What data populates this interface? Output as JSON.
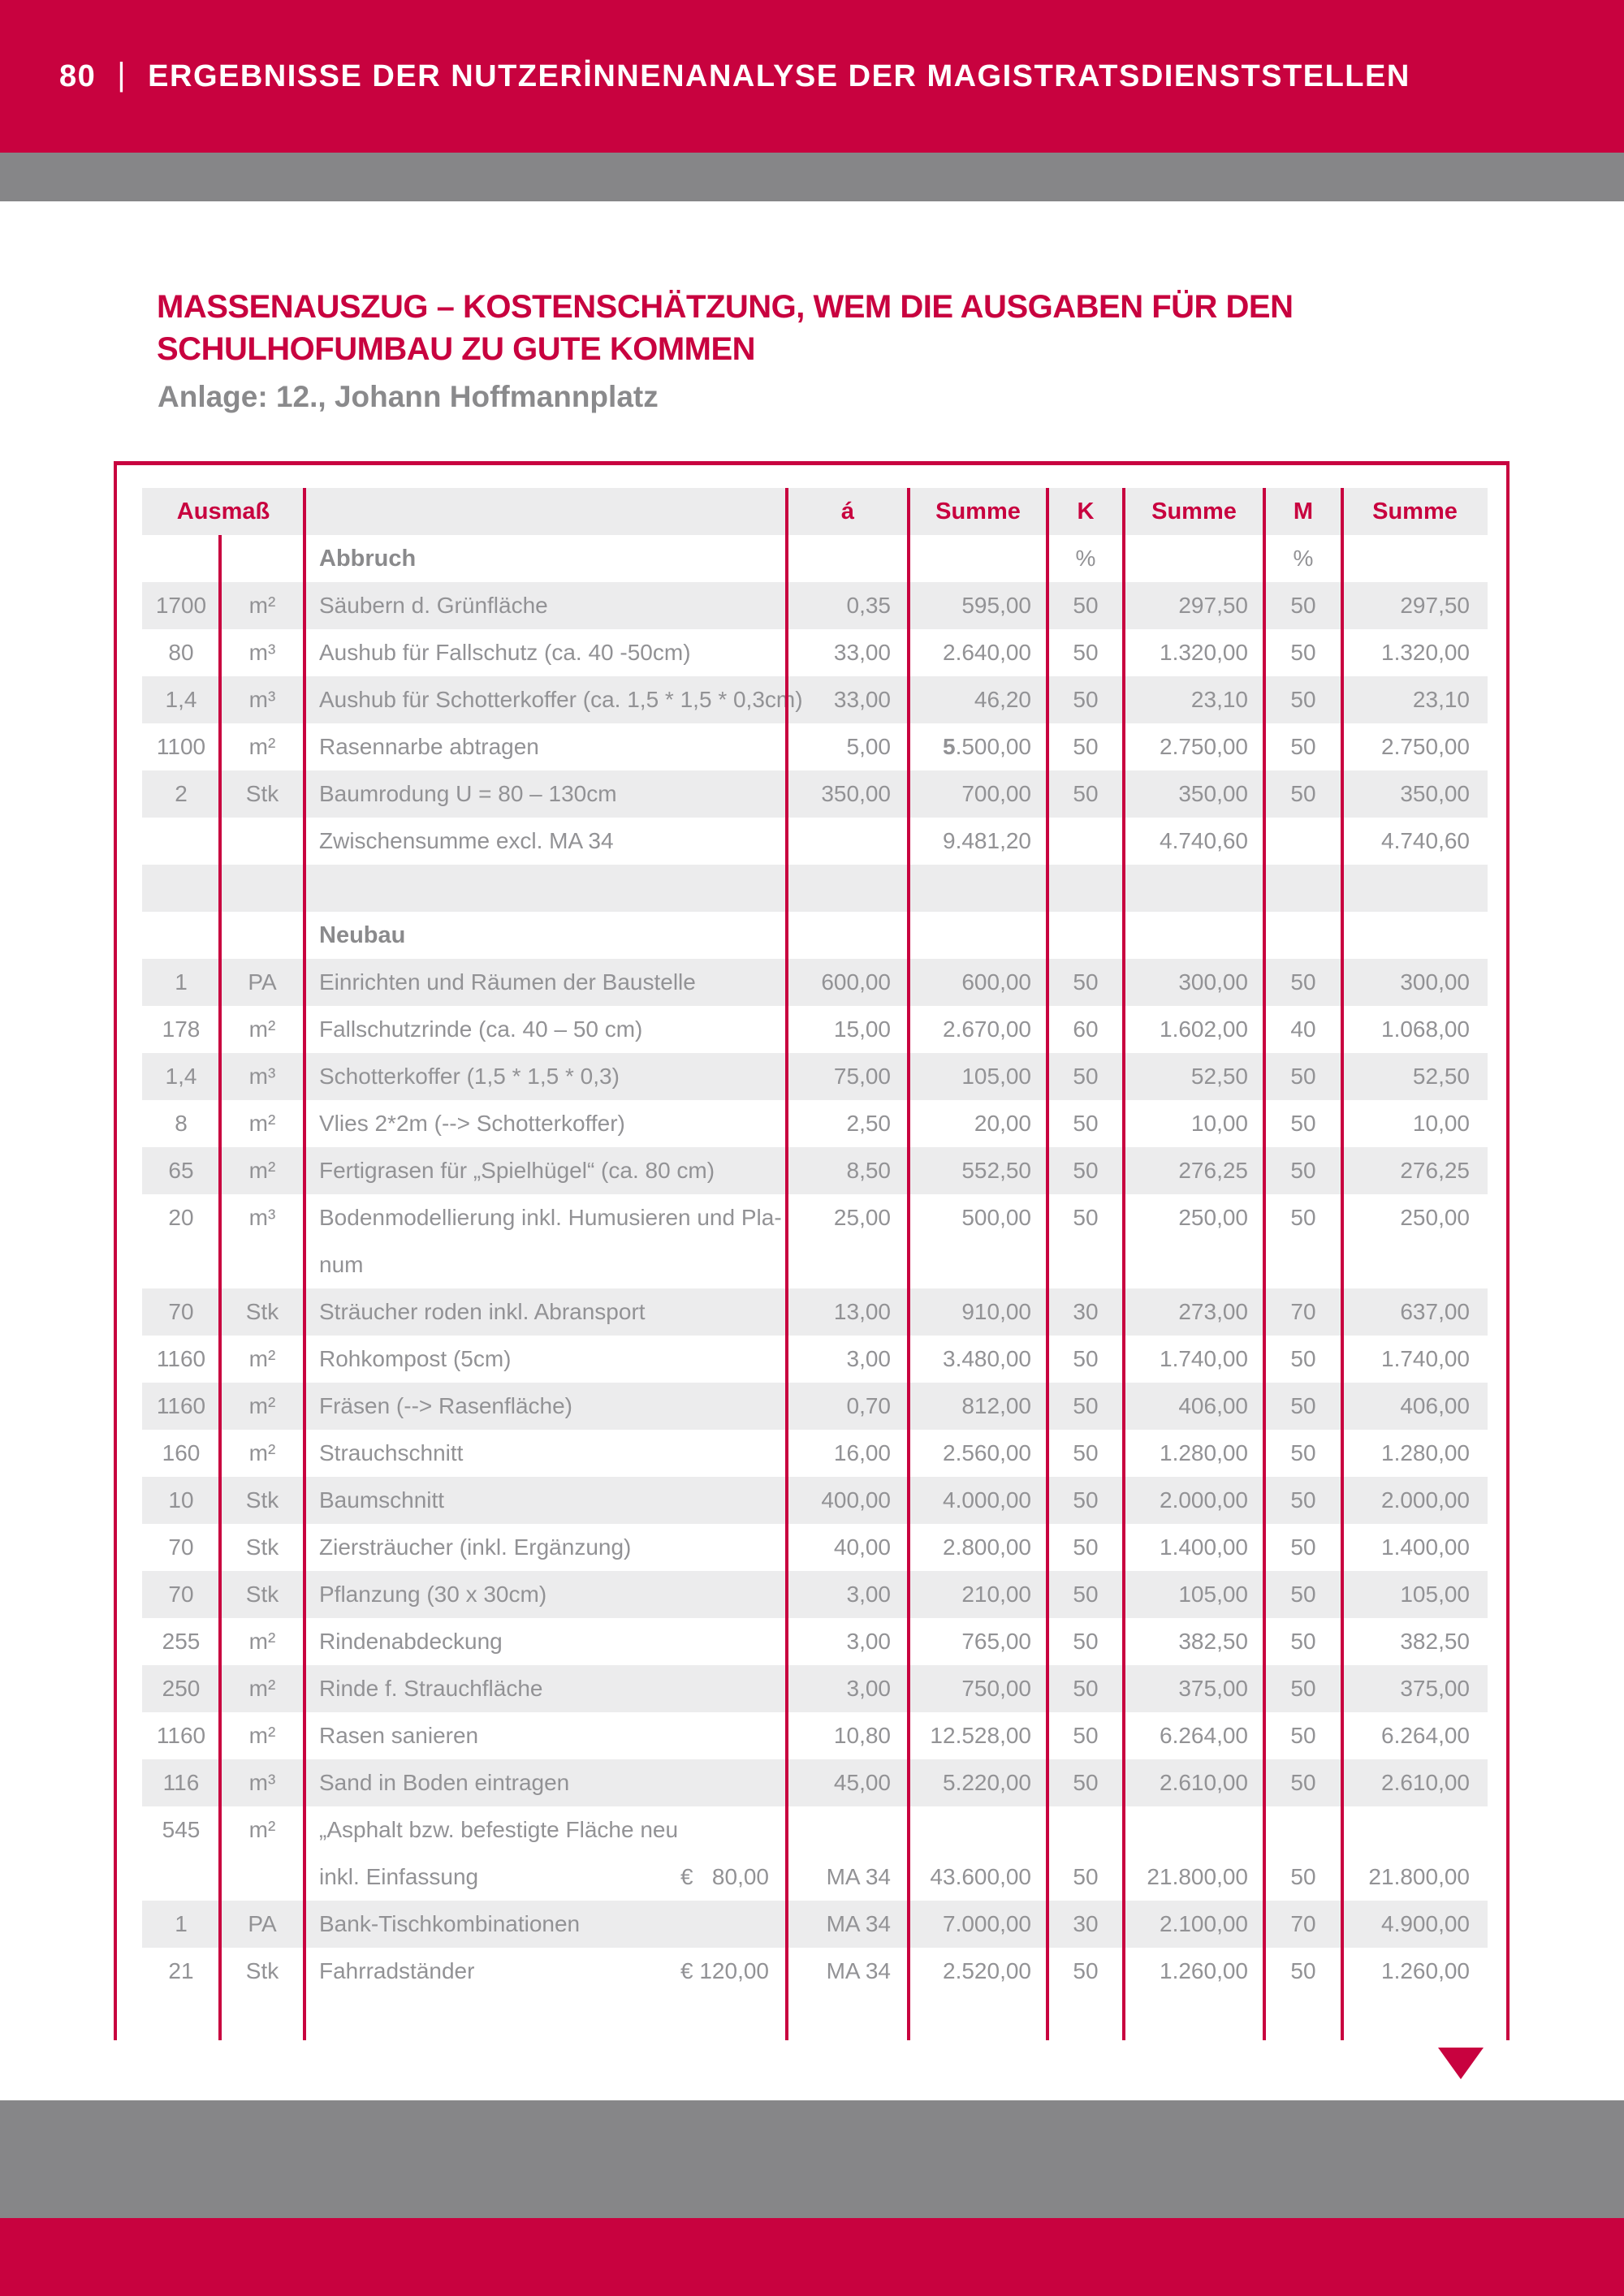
{
  "colors": {
    "accent_red": "#C8023F",
    "bar_gray": "#868688",
    "row_stripe": "#ECECED",
    "table_text_gray": "#929295",
    "heading_gray": "#8A8A8C"
  },
  "topbar": {
    "page_number": "80",
    "divider": "|",
    "title": "ERGEBNISSE DER NUTZERİNNENANALYSE DER MAGISTRATSDIENSTSTELLEN"
  },
  "doc": {
    "title_line1": "MASSENAUSZUG – KOSTENSCHÄTZUNG, WEM DIE AUSGABEN FÜR DEN",
    "title_line2": "SCHULHOFUMBAU ZU GUTE KOMMEN",
    "subtitle": "Anlage: 12., Johann Hoffmannplatz"
  },
  "table": {
    "headers": {
      "ausmass": "Ausmaß",
      "unit_price": "á",
      "summe": "Summe",
      "k": "K",
      "m": "M"
    },
    "percent": "%",
    "rows": [
      {
        "type": "section",
        "desc": "Abbruch",
        "k": "%",
        "m": "%",
        "shade": false
      },
      {
        "type": "item",
        "ausmass": "1700",
        "unit": "m²",
        "desc": "Säubern d. Grünfläche",
        "a": "0,35",
        "s1": "595,00",
        "k": "50",
        "s2": "297,50",
        "m": "50",
        "s3": "297,50",
        "shade": true
      },
      {
        "type": "item",
        "ausmass": "80",
        "unit": "m³",
        "desc": "Aushub für Fallschutz (ca. 40 -50cm)",
        "a": "33,00",
        "s1": "2.640,00",
        "k": "50",
        "s2": "1.320,00",
        "m": "50",
        "s3": "1.320,00",
        "shade": false
      },
      {
        "type": "item",
        "ausmass": "1,4",
        "unit": "m³",
        "desc": "Aushub für Schotterkoffer (ca. 1,5 * 1,5 * 0,3cm)",
        "a": "33,00",
        "s1": "46,20",
        "k": "50",
        "s2": "23,10",
        "m": "50",
        "s3": "23,10",
        "shade": true
      },
      {
        "type": "item",
        "ausmass": "1100",
        "unit": "m²",
        "desc": "Rasennarbe abtragen",
        "a": "5,00",
        "s1": "5.500,00",
        "s1_bold_first": true,
        "k": "50",
        "s2": "2.750,00",
        "m": "50",
        "s3": "2.750,00",
        "shade": false
      },
      {
        "type": "item",
        "ausmass": "2",
        "unit": "Stk",
        "desc": "Baumrodung U = 80 – 130cm",
        "a": "350,00",
        "s1": "700,00",
        "k": "50",
        "s2": "350,00",
        "m": "50",
        "s3": "350,00",
        "shade": true
      },
      {
        "type": "subtotal",
        "desc": "Zwischensumme excl. MA 34",
        "s1": "9.481,20",
        "s2": "4.740,60",
        "s3": "4.740,60",
        "shade": false
      },
      {
        "type": "spacer",
        "shade": true
      },
      {
        "type": "section",
        "desc": "Neubau",
        "shade": false
      },
      {
        "type": "item",
        "ausmass": "1",
        "unit": "PA",
        "desc": "Einrichten und Räumen der Baustelle",
        "a": "600,00",
        "s1": "600,00",
        "k": "50",
        "s2": "300,00",
        "m": "50",
        "s3": "300,00",
        "shade": true
      },
      {
        "type": "item",
        "ausmass": "178",
        "unit": "m²",
        "desc": "Fallschutzrinde (ca. 40 – 50 cm)",
        "a": "15,00",
        "s1": "2.670,00",
        "k": "60",
        "s2": "1.602,00",
        "m": "40",
        "s3": "1.068,00",
        "shade": false
      },
      {
        "type": "item",
        "ausmass": "1,4",
        "unit": "m³",
        "desc": "Schotterkoffer (1,5 * 1,5 * 0,3)",
        "a": "75,00",
        "s1": "105,00",
        "k": "50",
        "s2": "52,50",
        "m": "50",
        "s3": "52,50",
        "shade": true
      },
      {
        "type": "item",
        "ausmass": "8",
        "unit": "m²",
        "desc": "Vlies 2*2m (--> Schotterkoffer)",
        "a": "2,50",
        "s1": "20,00",
        "k": "50",
        "s2": "10,00",
        "m": "50",
        "s3": "10,00",
        "shade": false
      },
      {
        "type": "item",
        "ausmass": "65",
        "unit": "m²",
        "desc": "Fertigrasen für „Spielhügel“ (ca. 80 cm)",
        "a": "8,50",
        "s1": "552,50",
        "k": "50",
        "s2": "276,25",
        "m": "50",
        "s3": "276,25",
        "shade": true
      },
      {
        "type": "item",
        "ausmass": "20",
        "unit": "m³",
        "desc": "Bodenmodellierung inkl. Humusieren und Pla-",
        "desc2": "num",
        "a": "25,00",
        "s1": "500,00",
        "k": "50",
        "s2": "250,00",
        "m": "50",
        "s3": "250,00",
        "shade": false,
        "tall": true,
        "valign": "top"
      },
      {
        "type": "item",
        "ausmass": "70",
        "unit": "Stk",
        "desc": "Sträucher roden inkl. Abransport",
        "a": "13,00",
        "s1": "910,00",
        "k": "30",
        "s2": "273,00",
        "m": "70",
        "s3": "637,00",
        "shade": true
      },
      {
        "type": "item",
        "ausmass": "1160",
        "unit": "m²",
        "desc": "Rohkompost (5cm)",
        "a": "3,00",
        "s1": "3.480,00",
        "k": "50",
        "s2": "1.740,00",
        "m": "50",
        "s3": "1.740,00",
        "shade": false
      },
      {
        "type": "item",
        "ausmass": "1160",
        "unit": "m²",
        "desc": "Fräsen (--> Rasenfläche)",
        "a": "0,70",
        "s1": "812,00",
        "k": "50",
        "s2": "406,00",
        "m": "50",
        "s3": "406,00",
        "shade": true
      },
      {
        "type": "item",
        "ausmass": "160",
        "unit": "m²",
        "desc": "Strauchschnitt",
        "a": "16,00",
        "s1": "2.560,00",
        "k": "50",
        "s2": "1.280,00",
        "m": "50",
        "s3": "1.280,00",
        "shade": false
      },
      {
        "type": "item",
        "ausmass": "10",
        "unit": "Stk",
        "desc": "Baumschnitt",
        "a": "400,00",
        "s1": "4.000,00",
        "k": "50",
        "s2": "2.000,00",
        "m": "50",
        "s3": "2.000,00",
        "shade": true
      },
      {
        "type": "item",
        "ausmass": "70",
        "unit": "Stk",
        "desc": "Ziersträucher (inkl. Ergänzung)",
        "a": "40,00",
        "s1": "2.800,00",
        "k": "50",
        "s2": "1.400,00",
        "m": "50",
        "s3": "1.400,00",
        "shade": false
      },
      {
        "type": "item",
        "ausmass": "70",
        "unit": "Stk",
        "desc": "Pflanzung (30 x 30cm)",
        "a": "3,00",
        "s1": "210,00",
        "k": "50",
        "s2": "105,00",
        "m": "50",
        "s3": "105,00",
        "shade": true
      },
      {
        "type": "item",
        "ausmass": "255",
        "unit": "m²",
        "desc": "Rindenabdeckung",
        "a": "3,00",
        "s1": "765,00",
        "k": "50",
        "s2": "382,50",
        "m": "50",
        "s3": "382,50",
        "shade": false
      },
      {
        "type": "item",
        "ausmass": "250",
        "unit": "m²",
        "desc": "Rinde f. Strauchfläche",
        "a": "3,00",
        "s1": "750,00",
        "k": "50",
        "s2": "375,00",
        "m": "50",
        "s3": "375,00",
        "shade": true
      },
      {
        "type": "item",
        "ausmass": "1160",
        "unit": "m²",
        "desc": "Rasen sanieren",
        "a": "10,80",
        "s1": "12.528,00",
        "k": "50",
        "s2": "6.264,00",
        "m": "50",
        "s3": "6.264,00",
        "shade": false
      },
      {
        "type": "item",
        "ausmass": "116",
        "unit": "m³",
        "desc": "Sand in Boden eintragen",
        "a": "45,00",
        "s1": "5.220,00",
        "k": "50",
        "s2": "2.610,00",
        "m": "50",
        "s3": "2.610,00",
        "shade": true
      },
      {
        "type": "item",
        "ausmass": "545",
        "unit": "m²",
        "desc": "„Asphalt bzw. befestigte Fläche neu",
        "desc2": "inkl. Einfassung",
        "price": "€   80,00",
        "a": "MA 34",
        "s1": "43.600,00",
        "k": "50",
        "s2": "21.800,00",
        "m": "50",
        "s3": "21.800,00",
        "shade": false,
        "tall": true,
        "valign": "bottom"
      },
      {
        "type": "item",
        "ausmass": "1",
        "unit": "PA",
        "desc": "Bank-Tischkombinationen",
        "a": "MA 34",
        "s1": "7.000,00",
        "k": "30",
        "s2": "2.100,00",
        "m": "70",
        "s3": "4.900,00",
        "shade": true
      },
      {
        "type": "item",
        "ausmass": "21",
        "unit": "Stk",
        "desc": "Fahrradständer",
        "price": "€ 120,00",
        "a": "MA 34",
        "s1": "2.520,00",
        "k": "50",
        "s2": "1.260,00",
        "m": "50",
        "s3": "1.260,00",
        "shade": false
      }
    ]
  }
}
